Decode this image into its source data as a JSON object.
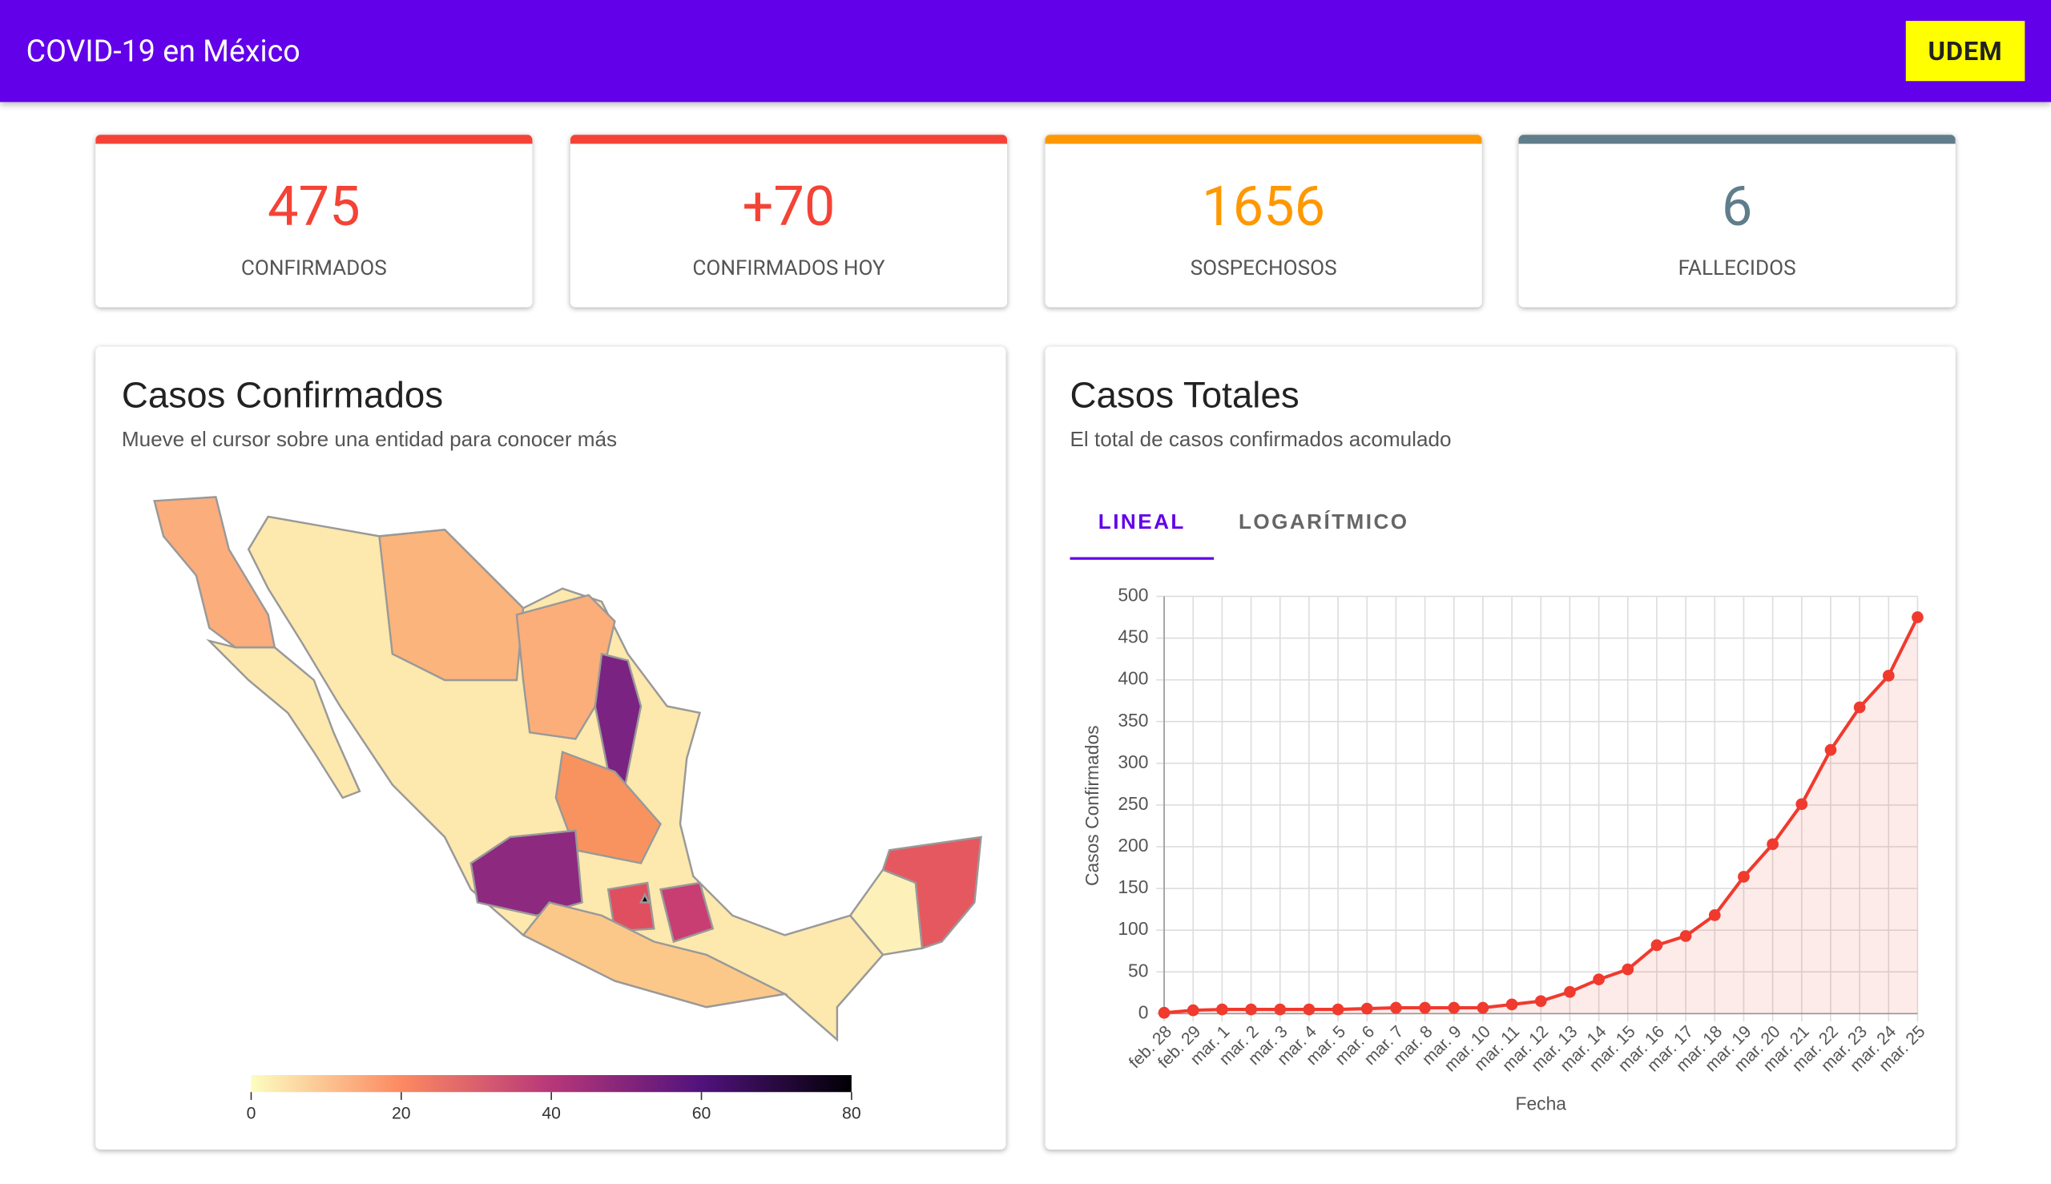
{
  "header": {
    "title": "COVID-19 en México",
    "button": "UDEM"
  },
  "stats": [
    {
      "value": "475",
      "label": "CONFIRMADOS",
      "color": "#f44336"
    },
    {
      "value": "+70",
      "label": "CONFIRMADOS HOY",
      "color": "#f44336"
    },
    {
      "value": "1656",
      "label": "SOSPECHOSOS",
      "color": "#ff9800"
    },
    {
      "value": "6",
      "label": "FALLECIDOS",
      "color": "#607d8b"
    }
  ],
  "map": {
    "title": "Casos Confirmados",
    "subtitle": "Mueve el cursor sobre una entidad para conocer más",
    "colorbar": {
      "lim": [
        0,
        80
      ],
      "ticks": [
        0,
        20,
        40,
        60,
        80
      ]
    }
  },
  "chart": {
    "type": "line",
    "title": "Casos Totales",
    "subtitle": "El total de casos confirmados acomulado",
    "tabs": [
      "LINEAL",
      "LOGARÍTMICO"
    ],
    "x_label": "Fecha",
    "y_label": "Casos Confirmados",
    "categories": [
      "feb. 28",
      "feb. 29",
      "mar. 1",
      "mar. 2",
      "mar. 3",
      "mar. 4",
      "mar. 5",
      "mar. 6",
      "mar. 7",
      "mar. 8",
      "mar. 9",
      "mar. 10",
      "mar. 11",
      "mar. 12",
      "mar. 13",
      "mar. 14",
      "mar. 15",
      "mar. 16",
      "mar. 17",
      "mar. 18",
      "mar. 19",
      "mar. 20",
      "mar. 21",
      "mar. 22",
      "mar. 23",
      "mar. 24",
      "mar. 25"
    ],
    "values": [
      1,
      4,
      5,
      5,
      5,
      5,
      5,
      6,
      7,
      7,
      7,
      7,
      11,
      15,
      26,
      41,
      53,
      82,
      93,
      118,
      164,
      203,
      251,
      316,
      367,
      405,
      475
    ],
    "color": "#f03a2e",
    "ylim": [
      0,
      500
    ],
    "yticks": [
      0,
      50,
      100,
      150,
      200,
      250,
      300,
      350,
      400,
      450,
      500
    ],
    "grid": true
  }
}
